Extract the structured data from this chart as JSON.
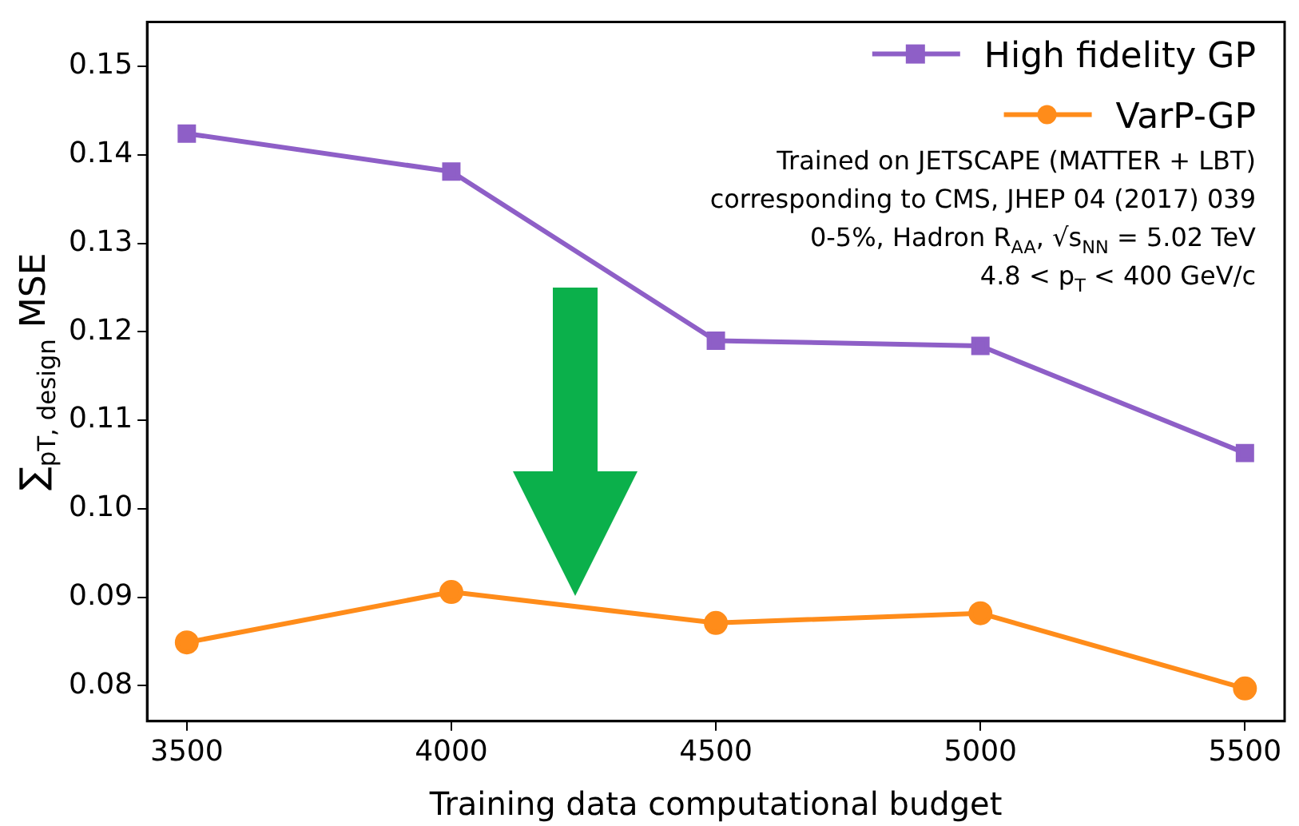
{
  "chart_data": {
    "type": "line",
    "xlabel": "Training data computational budget",
    "ylabel": "∑$_{pT, design}$ MSE",
    "x": [
      3500,
      4000,
      4500,
      5000,
      5500
    ],
    "series": [
      {
        "name": "High fidelity GP",
        "color": "#8e5fc7",
        "marker": "square",
        "values": [
          0.1424,
          0.1381,
          0.119,
          0.1184,
          0.1063
        ]
      },
      {
        "name": "VarP-GP",
        "color": "#ff8c1a",
        "marker": "circle",
        "values": [
          0.0849,
          0.0906,
          0.0871,
          0.0882,
          0.0797
        ]
      }
    ],
    "xlim": [
      3425,
      5575
    ],
    "xticks": [
      3500,
      4000,
      4500,
      5000,
      5500
    ],
    "ylim": [
      0.076,
      0.155
    ],
    "yticks": [
      0.08,
      0.09,
      {
        "value": 0.1,
        "label": "0.10"
      },
      0.11,
      0.12,
      0.13,
      0.14,
      0.15
    ],
    "legend": "top right",
    "grid": false,
    "line_style": "solid",
    "annotations": [
      "Trained on JETSCAPE (MATTER + LBT)",
      "corresponding to CMS, JHEP 04 (2017) 039",
      "0-5%, Hadron R$_{AA}$, √s$_{NN}$ = 5.02 TeV",
      "4.8 < p$_{T}$ < 400 GeV/c"
    ]
  }
}
